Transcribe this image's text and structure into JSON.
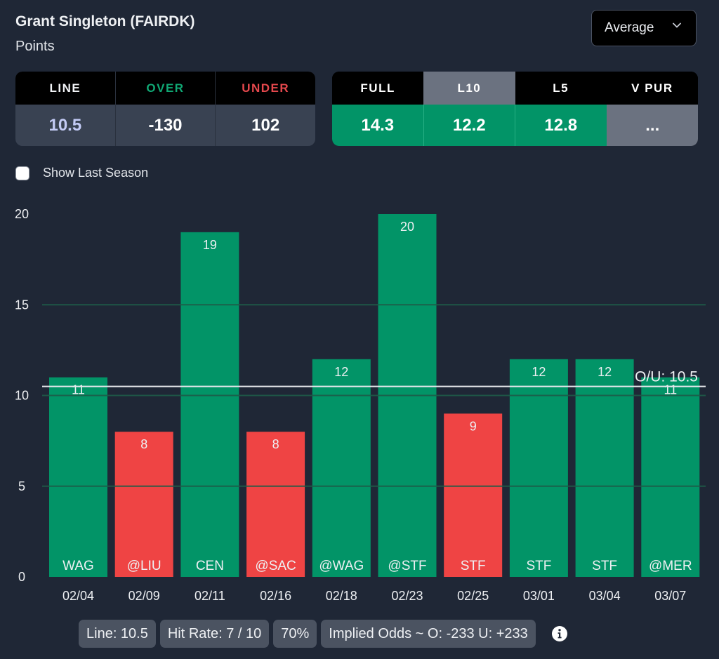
{
  "header": {
    "player": "Grant Singleton (FAIRDK)",
    "stat": "Points",
    "dropdown": {
      "selected": "Average",
      "icon": "chevron-down-icon"
    }
  },
  "odds": {
    "headers": [
      {
        "label": "LINE",
        "color": "#f2f4f7"
      },
      {
        "label": "OVER",
        "color": "#10a874"
      },
      {
        "label": "UNDER",
        "color": "#e5484d"
      }
    ],
    "values": [
      {
        "value": "10.5",
        "color": "#c3cbf5"
      },
      {
        "value": "-130",
        "color": "#ffffff"
      },
      {
        "value": "102",
        "color": "#ffffff"
      }
    ]
  },
  "averages": {
    "headers": [
      "FULL",
      "L10",
      "L5",
      "V PUR"
    ],
    "active": "L10",
    "values": [
      "14.3",
      "12.2",
      "12.8",
      "..."
    ]
  },
  "show_last_season": {
    "label": "Show Last Season",
    "checked": false
  },
  "colors": {
    "over": "#029467",
    "under": "#ef4444",
    "background": "#1f2736"
  },
  "chart_data": {
    "type": "bar",
    "title": "",
    "xlabel": "",
    "ylabel": "",
    "ylim": [
      0,
      20
    ],
    "yticks": [
      0,
      5,
      10,
      15,
      20
    ],
    "grid": true,
    "categories": [
      "02/04",
      "02/09",
      "02/11",
      "02/16",
      "02/18",
      "02/23",
      "02/25",
      "03/01",
      "03/04",
      "03/07"
    ],
    "opponents": [
      "WAG",
      "@LIU",
      "CEN",
      "@SAC",
      "@WAG",
      "@STF",
      "STF",
      "STF",
      "STF",
      "@MER"
    ],
    "values": [
      11,
      8,
      19,
      8,
      12,
      20,
      9,
      12,
      12,
      11
    ],
    "result": [
      "over",
      "under",
      "over",
      "under",
      "over",
      "over",
      "under",
      "over",
      "over",
      "over"
    ],
    "reference_line": {
      "value": 10.5,
      "label": "O/U: 10.5"
    }
  },
  "summary": {
    "chips": [
      "Line: 10.5",
      "Hit Rate: 7 / 10",
      "70%",
      "Implied Odds ~ O: -233 U: +233"
    ],
    "info_icon": "info-icon"
  }
}
